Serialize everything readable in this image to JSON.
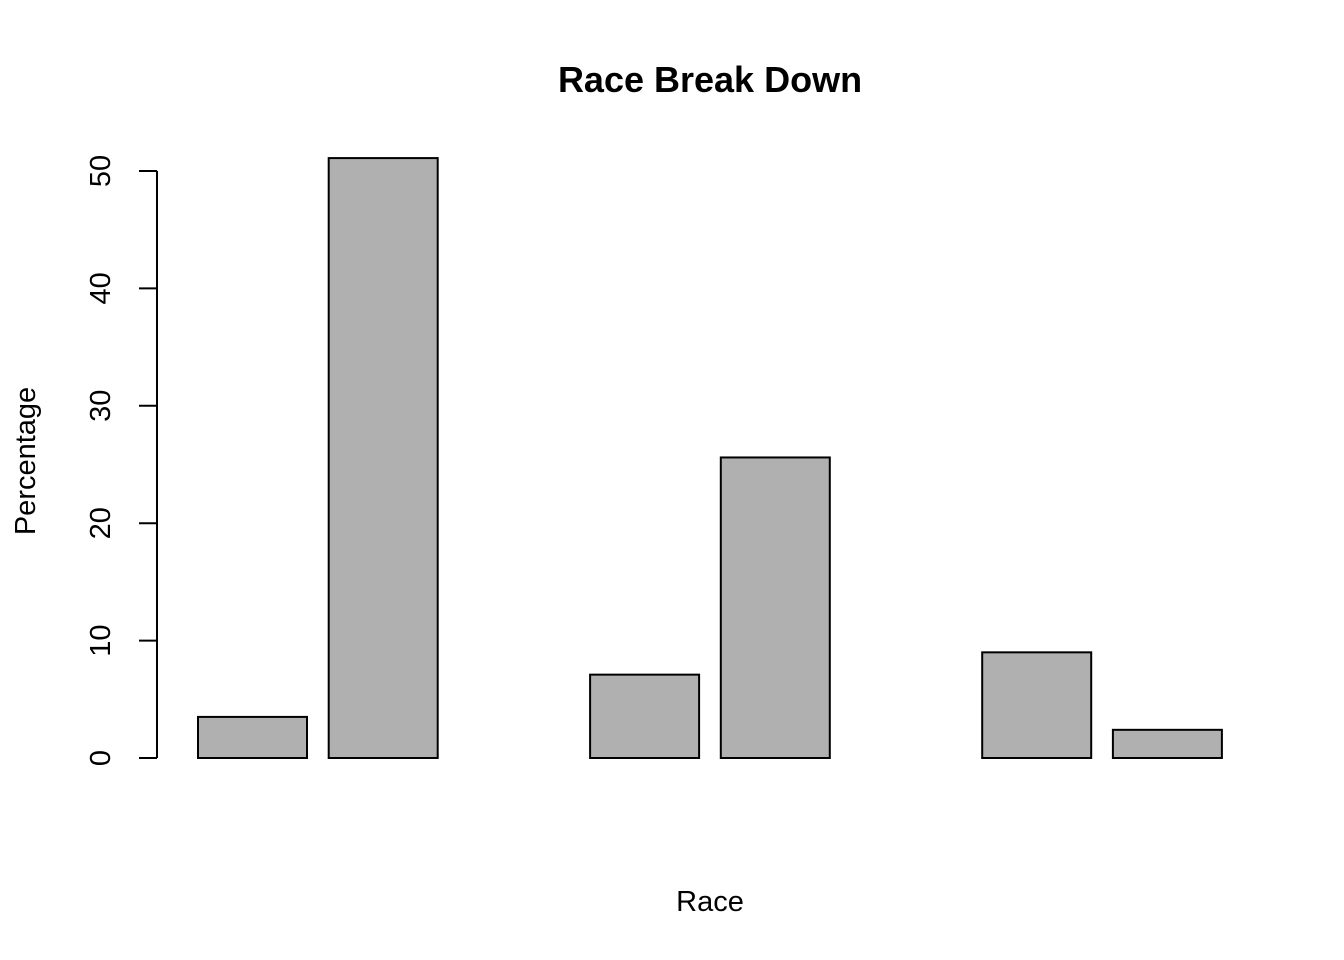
{
  "chart_data": {
    "type": "bar",
    "title": "Race Break Down",
    "xlabel": "Race",
    "ylabel": "Percentage",
    "ylim": [
      0,
      50
    ],
    "yticks": [
      0,
      10,
      20,
      30,
      40,
      50
    ],
    "values": [
      3.5,
      51.1,
      0,
      7.1,
      25.6,
      0,
      9.0,
      2.4
    ],
    "bar_fill": "#b0b0b0",
    "bar_stroke": "#000000",
    "grid": false,
    "legend": "none"
  }
}
